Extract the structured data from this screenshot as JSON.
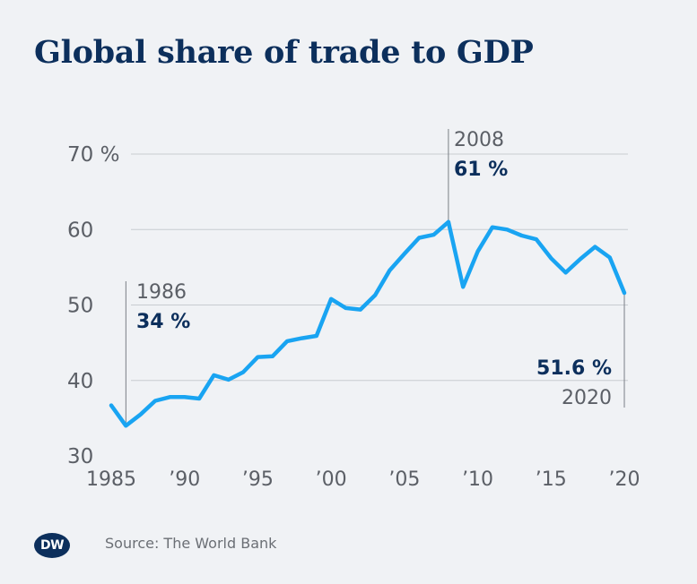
{
  "title": "Global share of trade to GDP",
  "source": "Source: The World Bank",
  "logo": "DW",
  "colors": {
    "background": "#f0f2f5",
    "line": "#19a4f2",
    "title": "#0c2f5c",
    "axis_text": "#5b5f66",
    "grid": "#c8ccd1"
  },
  "chart_data": {
    "type": "line",
    "title": "Global share of trade to GDP",
    "ylim": [
      30,
      70
    ],
    "yticks": [
      {
        "value": 70,
        "label": "70  %"
      },
      {
        "value": 60,
        "label": "60"
      },
      {
        "value": 50,
        "label": "50"
      },
      {
        "value": 40,
        "label": "40"
      },
      {
        "value": 30,
        "label": "30"
      }
    ],
    "xticks": [
      {
        "value": 1985,
        "label": "1985"
      },
      {
        "value": 1990,
        "label": "’90"
      },
      {
        "value": 1995,
        "label": "’95"
      },
      {
        "value": 2000,
        "label": "’00"
      },
      {
        "value": 2005,
        "label": "’05"
      },
      {
        "value": 2010,
        "label": "’10"
      },
      {
        "value": 2015,
        "label": "’15"
      },
      {
        "value": 2020,
        "label": "’20"
      }
    ],
    "xlim": [
      1985,
      2020
    ],
    "grid": true,
    "series": [
      {
        "x": [
          1985,
          1986,
          1987,
          1988,
          1989,
          1990,
          1991,
          1992,
          1993,
          1994,
          1995,
          1996,
          1997,
          1998,
          1999,
          2000,
          2001,
          2002,
          2003,
          2004,
          2005,
          2006,
          2007,
          2008,
          2009,
          2010,
          2011,
          2012,
          2013,
          2014,
          2015,
          2016,
          2017,
          2018,
          2019,
          2020
        ],
        "values": [
          36.7,
          34.0,
          35.5,
          37.3,
          37.8,
          37.8,
          37.6,
          40.7,
          40.1,
          41.1,
          43.1,
          43.2,
          45.2,
          45.6,
          45.9,
          50.8,
          49.6,
          49.4,
          51.3,
          54.6,
          56.8,
          58.9,
          59.3,
          61.0,
          52.4,
          57.1,
          60.3,
          60.0,
          59.2,
          58.7,
          56.2,
          54.3,
          56.1,
          57.7,
          56.3,
          51.6
        ]
      }
    ],
    "annotations": [
      {
        "year_label": "1986",
        "value_label": "34 %",
        "x": 1986,
        "y": 34.0
      },
      {
        "year_label": "2008",
        "value_label": "61 %",
        "x": 2008,
        "y": 61.0
      },
      {
        "year_label": "2020",
        "value_label": "51.6 %",
        "x": 2020,
        "y": 51.6
      }
    ]
  }
}
